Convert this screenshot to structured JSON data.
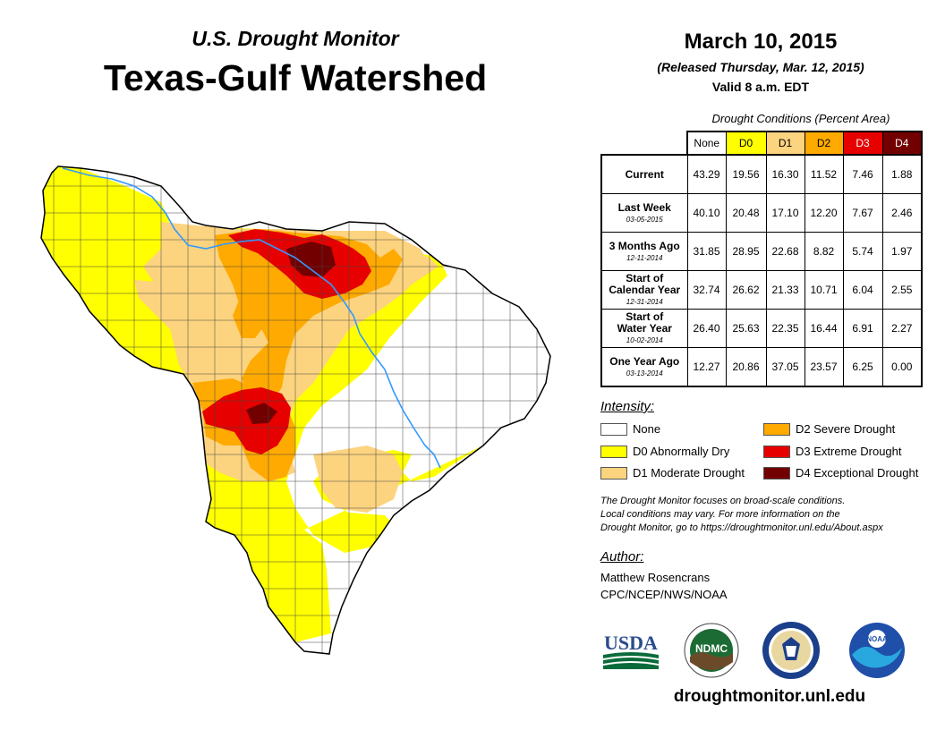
{
  "header": {
    "subtitle": "U.S. Drought Monitor",
    "title": "Texas-Gulf Watershed"
  },
  "date": {
    "main": "March 10, 2015",
    "released": "(Released Thursday, Mar. 12, 2015)",
    "valid": "Valid 8 a.m. EDT"
  },
  "table": {
    "caption": "Drought Conditions (Percent Area)",
    "columns": [
      "None",
      "D0",
      "D1",
      "D2",
      "D3",
      "D4"
    ],
    "rows": [
      {
        "label": "Current",
        "date": "",
        "values": [
          "43.29",
          "19.56",
          "16.30",
          "11.52",
          "7.46",
          "1.88"
        ]
      },
      {
        "label": "Last Week",
        "date": "03-05-2015",
        "values": [
          "40.10",
          "20.48",
          "17.10",
          "12.20",
          "7.67",
          "2.46"
        ]
      },
      {
        "label": "3 Months Ago",
        "date": "12-11-2014",
        "values": [
          "31.85",
          "28.95",
          "22.68",
          "8.82",
          "5.74",
          "1.97"
        ]
      },
      {
        "label": "Start of\nCalendar Year",
        "date": "12-31-2014",
        "values": [
          "32.74",
          "26.62",
          "21.33",
          "10.71",
          "6.04",
          "2.55"
        ]
      },
      {
        "label": "Start of\nWater Year",
        "date": "10-02-2014",
        "values": [
          "26.40",
          "25.63",
          "22.35",
          "16.44",
          "6.91",
          "2.27"
        ]
      },
      {
        "label": "One Year Ago",
        "date": "03-13-2014",
        "values": [
          "12.27",
          "20.86",
          "37.05",
          "23.57",
          "6.25",
          "0.00"
        ]
      }
    ]
  },
  "legend": {
    "title": "Intensity:",
    "items": [
      {
        "label": "None",
        "color": "#ffffff"
      },
      {
        "label": "D0 Abnormally Dry",
        "color": "#ffff00"
      },
      {
        "label": "D1 Moderate Drought",
        "color": "#fcd37f"
      },
      {
        "label": "D2 Severe Drought",
        "color": "#ffaa00"
      },
      {
        "label": "D3 Extreme Drought",
        "color": "#e60000"
      },
      {
        "label": "D4 Exceptional Drought",
        "color": "#730000"
      }
    ]
  },
  "description": [
    "The Drought Monitor focuses on broad-scale conditions.",
    "Local conditions may vary. For more information on the",
    "Drought Monitor, go to https://droughtmonitor.unl.edu/About.aspx"
  ],
  "author": {
    "heading": "Author:",
    "name": "Matthew Rosencrans",
    "org": "CPC/NCEP/NWS/NOAA"
  },
  "logos": {
    "usda": "USDA",
    "ndmc": "NDMC",
    "noaa": "NOAA"
  },
  "website": "droughtmonitor.unl.edu",
  "colors": {
    "none": "#ffffff",
    "d0": "#ffff00",
    "d1": "#fcd37f",
    "d2": "#ffaa00",
    "d3": "#e60000",
    "d4": "#730000",
    "river": "#3399ff"
  }
}
